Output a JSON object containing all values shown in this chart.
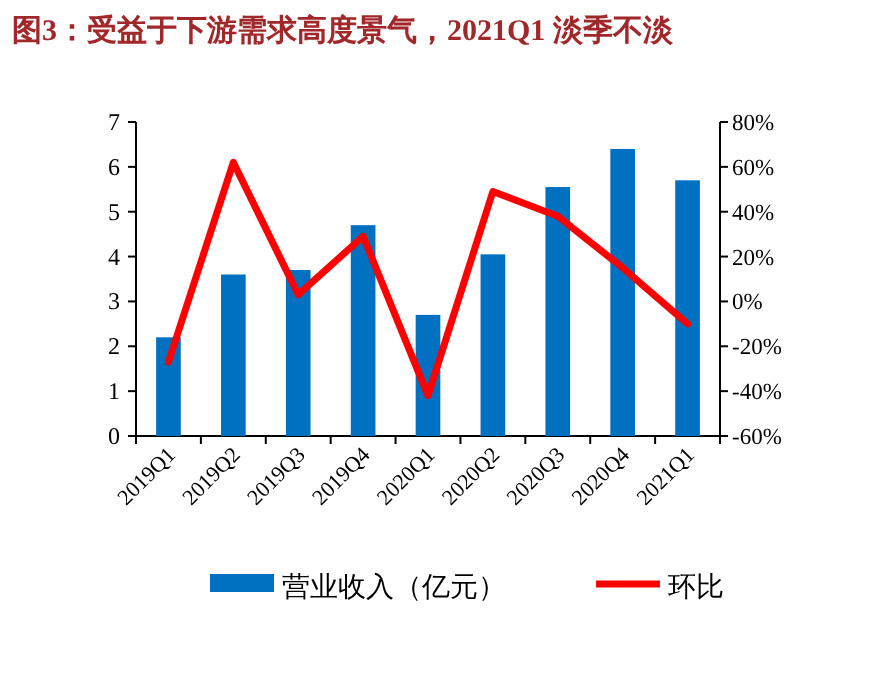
{
  "chart_data": {
    "type": "bar",
    "title": "图3：受益于下游需求高度景气，2021Q1 淡季不淡",
    "categories": [
      "2019Q1",
      "2019Q2",
      "2019Q3",
      "2019Q4",
      "2020Q1",
      "2020Q2",
      "2020Q3",
      "2020Q4",
      "2021Q1"
    ],
    "series": [
      {
        "name": "营业收入（亿元）",
        "color": "#0070c0",
        "values": [
          2.2,
          3.6,
          3.7,
          4.7,
          2.7,
          4.05,
          5.55,
          6.4,
          5.7
        ]
      },
      {
        "name": "环比",
        "type": "line",
        "axis": "y2",
        "color": "#ff0000",
        "values": [
          -27,
          62,
          3,
          29,
          -42,
          49,
          38,
          15,
          -10
        ]
      }
    ],
    "ylim": [
      0,
      7
    ],
    "yticks": [
      0,
      1,
      2,
      3,
      4,
      5,
      6,
      7
    ],
    "y2lim": [
      -60,
      80
    ],
    "y2ticks": [
      {
        "value": -60,
        "label": "-60%"
      },
      {
        "value": -40,
        "label": "-40%"
      },
      {
        "value": -20,
        "label": "-20%"
      },
      {
        "value": 0,
        "label": "0%"
      },
      {
        "value": 20,
        "label": "20%"
      },
      {
        "value": 40,
        "label": "40%"
      },
      {
        "value": 60,
        "label": "60%"
      },
      {
        "value": 80,
        "label": "80%"
      }
    ],
    "legend": "bottom"
  }
}
